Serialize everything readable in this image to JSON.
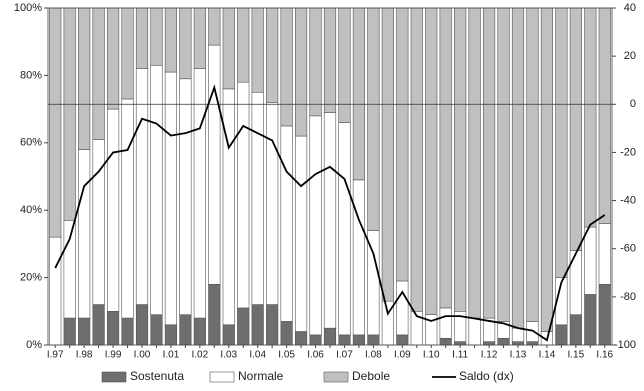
{
  "chart_data": {
    "type": "stacked-bar-line",
    "categories": [
      "I.97",
      null,
      "I.98",
      null,
      "I.99",
      null,
      "I.00",
      null,
      "I.01",
      null,
      "I.02",
      null,
      "I.03",
      null,
      "I.04",
      null,
      "I.05",
      null,
      "I.06",
      null,
      "I.07",
      null,
      "I.08",
      null,
      "I.09",
      null,
      "I.10",
      null,
      "I.11",
      null,
      "I.12",
      null,
      "I.13",
      null,
      "I.14",
      null,
      "I.15",
      null,
      "I.16"
    ],
    "series": [
      {
        "name": "Sostenuta",
        "color": "#6e6e6e",
        "values": [
          0,
          8,
          8,
          12,
          10,
          8,
          12,
          9,
          6,
          9,
          8,
          18,
          6,
          11,
          12,
          12,
          7,
          4,
          3,
          5,
          3,
          3,
          3,
          0,
          3,
          0,
          0,
          2,
          1,
          0,
          1,
          2,
          1,
          1,
          0,
          6,
          9,
          15,
          18
        ]
      },
      {
        "name": "Normale",
        "color": "#ffffff",
        "values": [
          32,
          29,
          50,
          49,
          60,
          65,
          70,
          74,
          75,
          70,
          74,
          71,
          70,
          67,
          63,
          60,
          58,
          58,
          65,
          64,
          63,
          46,
          31,
          13,
          16,
          10,
          9,
          9,
          9,
          8,
          7,
          5,
          4,
          6,
          4,
          14,
          19,
          20,
          18
        ]
      },
      {
        "name": "Debole",
        "color": "#c0c0c0",
        "values": [
          68,
          63,
          42,
          39,
          30,
          27,
          18,
          17,
          19,
          21,
          18,
          11,
          24,
          22,
          25,
          28,
          35,
          38,
          32,
          31,
          34,
          51,
          66,
          87,
          81,
          90,
          91,
          89,
          90,
          92,
          92,
          93,
          95,
          93,
          96,
          80,
          72,
          65,
          64
        ]
      },
      {
        "name": "Saldo (dx)",
        "color": "#000000",
        "axis": "y2",
        "values": [
          -68,
          -56,
          -34,
          -28,
          -20,
          -19,
          -6,
          -8,
          -13,
          -12,
          -10,
          7,
          -18,
          -9,
          -12,
          -15,
          -28,
          -34,
          -29,
          -26,
          -31,
          -48,
          -62,
          -87,
          -78,
          -88,
          -90,
          -88,
          -88,
          -89,
          -90,
          -91,
          -93,
          -94,
          -98,
          -74,
          -62,
          -50,
          -46
        ]
      }
    ],
    "ylim": [
      0,
      100
    ],
    "yticks": [
      {
        "value": 0,
        "label": "0%"
      },
      {
        "value": 20,
        "label": "20%"
      },
      {
        "value": 40,
        "label": "40%"
      },
      {
        "value": 60,
        "label": "60%"
      },
      {
        "value": 80,
        "label": "80%"
      },
      {
        "value": 100,
        "label": "100%"
      }
    ],
    "y2lim": [
      -100,
      40
    ],
    "y2ticks": [
      -100,
      -80,
      -60,
      -40,
      -20,
      0,
      20,
      40
    ],
    "legend": "bottom"
  }
}
